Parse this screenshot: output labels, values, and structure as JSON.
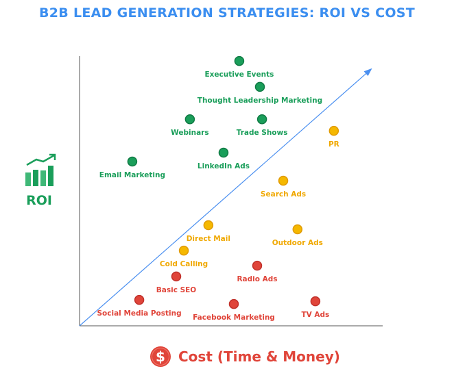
{
  "chart_data": {
    "type": "scatter",
    "title": "B2B LEAD GENERATION STRATEGIES: ROI VS COST",
    "xlabel": "Cost (Time & Money)",
    "ylabel": "ROI",
    "xlim": [
      0,
      10
    ],
    "ylim": [
      0,
      10
    ],
    "grid": false,
    "trend_line": {
      "from": [
        0,
        0
      ],
      "to": [
        9.6,
        9.5
      ],
      "color": "#4a8ff0"
    },
    "colors": {
      "green": "#1a9e5a",
      "yellow": "#f5b800",
      "yellow_text": "#f0a800",
      "red": "#e0453a",
      "title": "#3b8ef0"
    },
    "points": [
      {
        "label": "Executive Events",
        "cost": 5.27,
        "roi": 9.82,
        "group": "green"
      },
      {
        "label": "Thought Leadership Marketing",
        "cost": 5.95,
        "roi": 8.86,
        "group": "green"
      },
      {
        "label": "Webinars",
        "cost": 3.64,
        "roi": 7.66,
        "group": "green"
      },
      {
        "label": "Trade Shows",
        "cost": 6.02,
        "roi": 7.66,
        "group": "green"
      },
      {
        "label": "PR",
        "cost": 8.39,
        "roi": 7.23,
        "group": "yellow"
      },
      {
        "label": "LinkedIn Ads",
        "cost": 4.75,
        "roi": 6.42,
        "group": "green"
      },
      {
        "label": "Email Marketing",
        "cost": 1.74,
        "roi": 6.09,
        "group": "green"
      },
      {
        "label": "Search Ads",
        "cost": 6.72,
        "roi": 5.38,
        "group": "yellow"
      },
      {
        "label": "Direct Mail",
        "cost": 4.25,
        "roi": 3.73,
        "group": "yellow"
      },
      {
        "label": "Outdoor Ads",
        "cost": 7.19,
        "roi": 3.58,
        "group": "yellow"
      },
      {
        "label": "Cold Calling",
        "cost": 3.44,
        "roi": 2.79,
        "group": "yellow"
      },
      {
        "label": "Radio Ads",
        "cost": 5.86,
        "roi": 2.23,
        "group": "red"
      },
      {
        "label": "Basic SEO",
        "cost": 3.19,
        "roi": 1.83,
        "group": "red"
      },
      {
        "label": "Social Media Posting",
        "cost": 1.97,
        "roi": 0.96,
        "group": "red"
      },
      {
        "label": "Facebook Marketing",
        "cost": 5.09,
        "roi": 0.81,
        "group": "red"
      },
      {
        "label": "TV Ads",
        "cost": 7.78,
        "roi": 0.91,
        "group": "red"
      }
    ]
  },
  "icons": {
    "roi": "chart-growth-icon",
    "cost": "dollar-coin-icon",
    "dollar_glyph": "$"
  }
}
